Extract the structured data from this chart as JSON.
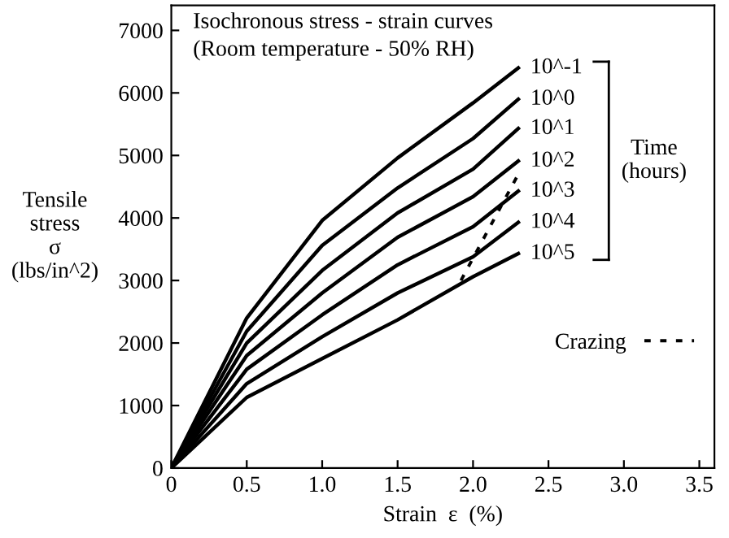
{
  "chart_data": {
    "type": "line",
    "title": "Isochronous stress - strain curves",
    "subtitle": "(Room temperature - 50% RH)",
    "xlabel": "Strain  ε  (%)",
    "ylabel": "Tensile\nstress\nσ\n(lbs/in^2)",
    "x": [
      0,
      0.5,
      1.0,
      1.5,
      2.0,
      2.3
    ],
    "series": [
      {
        "name": "10^-1",
        "color": "#000000",
        "values": [
          0,
          2400,
          3960,
          4960,
          5840,
          6400
        ]
      },
      {
        "name": "10^0",
        "color": "#000000",
        "values": [
          0,
          2190,
          3560,
          4480,
          5270,
          5900
        ]
      },
      {
        "name": "10^1",
        "color": "#000000",
        "values": [
          0,
          2000,
          3160,
          4080,
          4780,
          5430
        ]
      },
      {
        "name": "10^2",
        "color": "#000000",
        "values": [
          0,
          1800,
          2800,
          3690,
          4340,
          4910
        ]
      },
      {
        "name": "10^3",
        "color": "#000000",
        "values": [
          0,
          1580,
          2450,
          3250,
          3860,
          4430
        ]
      },
      {
        "name": "10^4",
        "color": "#000000",
        "values": [
          0,
          1350,
          2100,
          2800,
          3380,
          3930
        ]
      },
      {
        "name": "10^5",
        "color": "#000000",
        "values": [
          0,
          1130,
          1750,
          2370,
          3060,
          3430
        ]
      },
      {
        "name": "Crazing",
        "color": "#000000",
        "x": [
          1.92,
          2.3
        ],
        "values": [
          3000,
          4700
        ],
        "line_style": "dotted"
      }
    ],
    "annotations": [
      "Time\n(hours)"
    ],
    "legend": "right",
    "line_style": "solid",
    "marker": "none",
    "grid": false,
    "xlim": [
      0,
      3.6
    ],
    "ylim": [
      0,
      7400
    ],
    "xticks": [
      0,
      0.5,
      {
        "value": 1.0,
        "label": "1.0"
      },
      1.5,
      {
        "value": 2.0,
        "label": "2.0"
      },
      2.5,
      {
        "value": 3.0,
        "label": "3.0"
      },
      3.5
    ],
    "yticks": [
      0,
      1000,
      2000,
      3000,
      4000,
      5000,
      6000,
      7000
    ]
  }
}
